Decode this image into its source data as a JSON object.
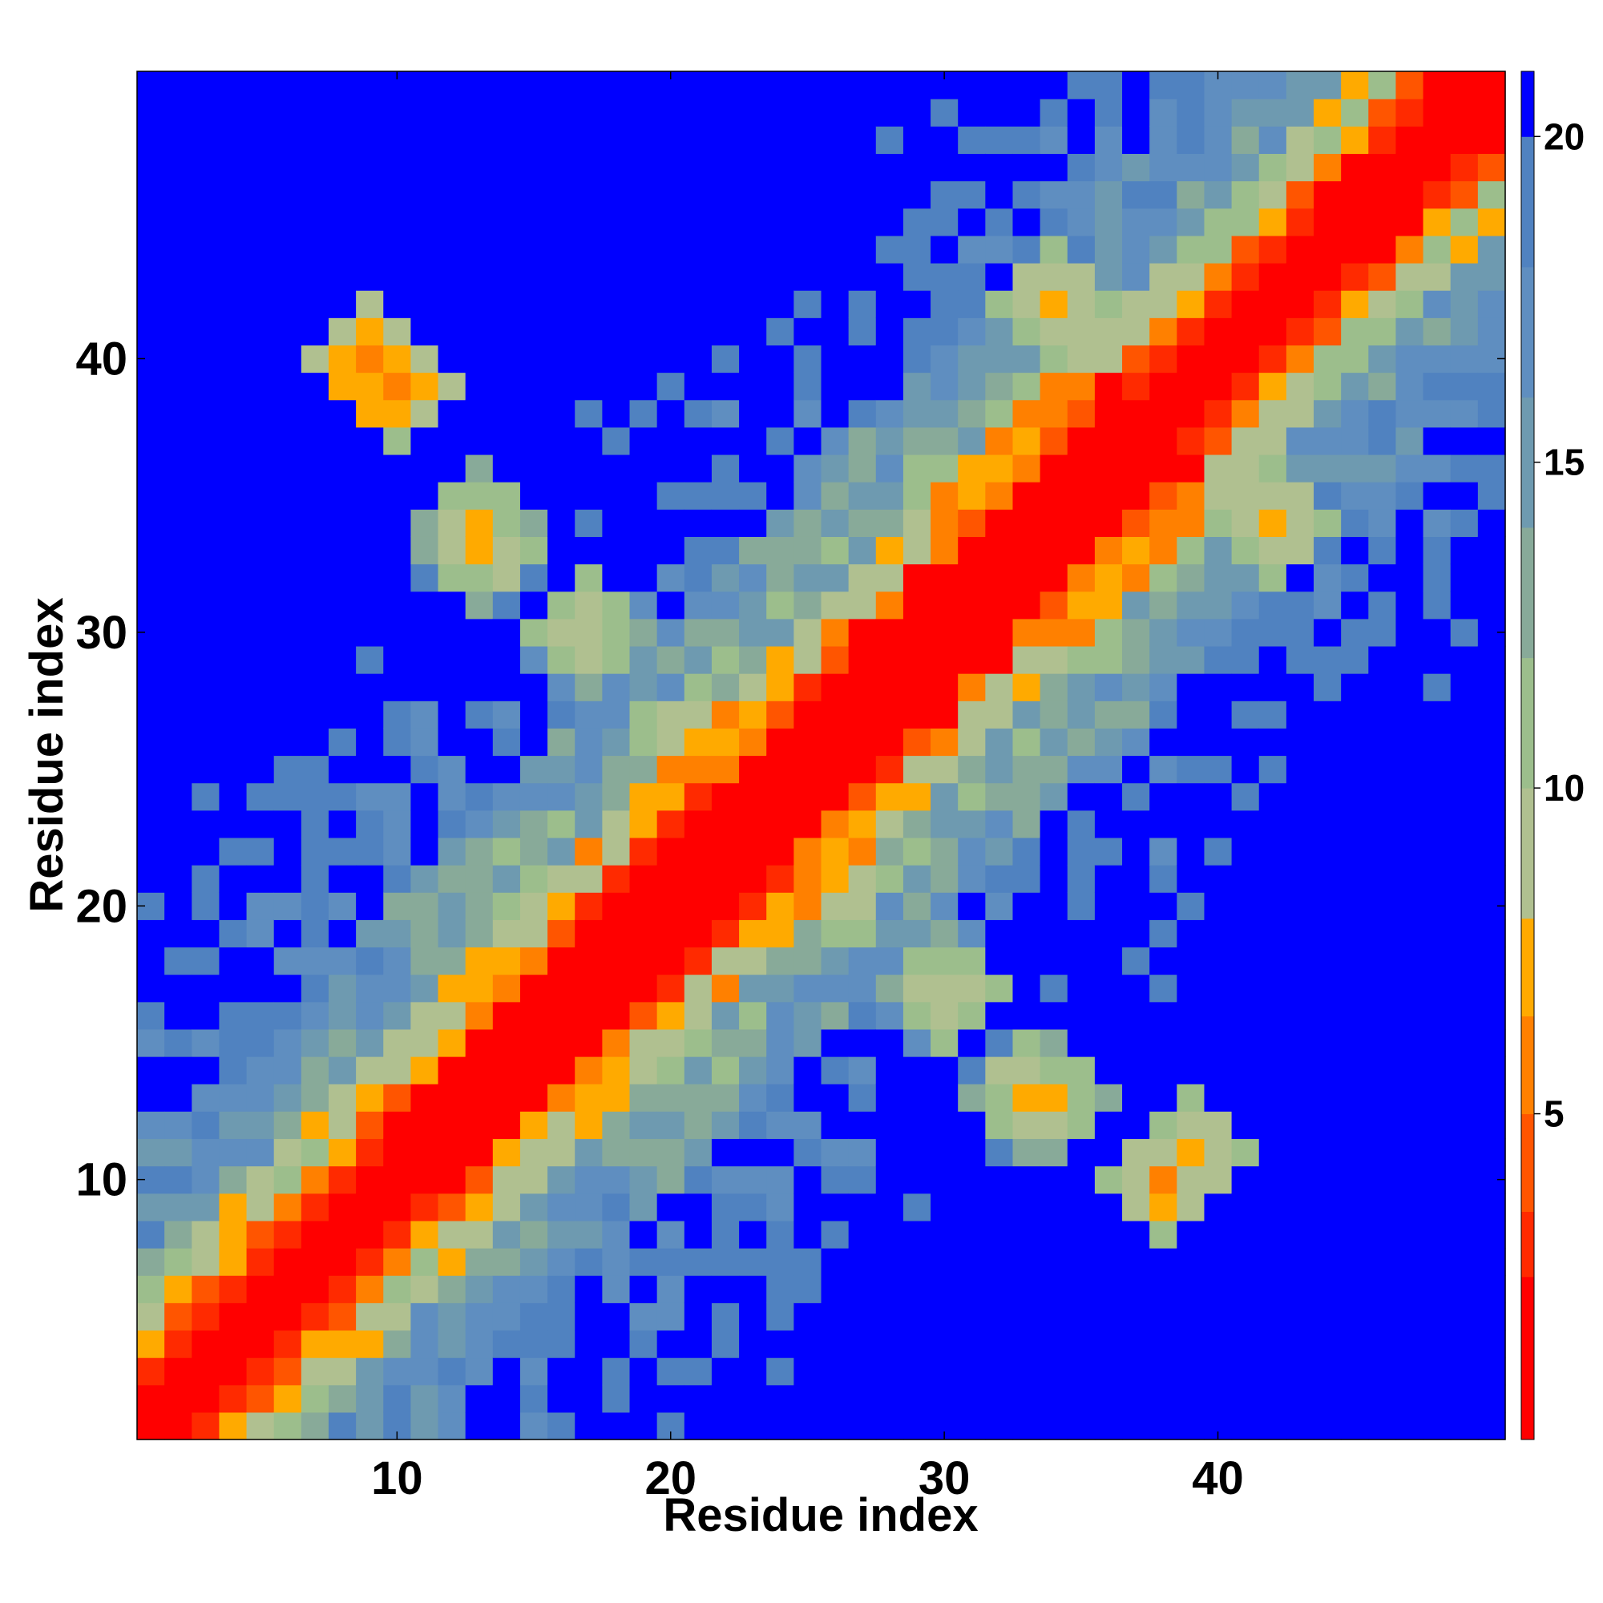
{
  "chart_data": {
    "type": "heatmap",
    "title": "",
    "xlabel": "Residue index",
    "ylabel": "Residue index",
    "grid": false,
    "n": 50,
    "xlim": [
      0.5,
      50.5
    ],
    "ylim": [
      0.5,
      50.5
    ],
    "xticks": [
      10,
      20,
      30,
      40
    ],
    "yticks": [
      10,
      20,
      30,
      40
    ],
    "colorbar": {
      "min": 0,
      "max": 21,
      "ticks": [
        5,
        10,
        15,
        20
      ],
      "bins": [
        {
          "upper": 2.5,
          "color": "#ff0000"
        },
        {
          "upper": 3.5,
          "color": "#ff2a00"
        },
        {
          "upper": 5.0,
          "color": "#ff5500"
        },
        {
          "upper": 6.5,
          "color": "#ff8000"
        },
        {
          "upper": 8.0,
          "color": "#ffaa00"
        },
        {
          "upper": 10.0,
          "color": "#b0c090"
        },
        {
          "upper": 12.0,
          "color": "#9cbe8c"
        },
        {
          "upper": 14.0,
          "color": "#88aa99"
        },
        {
          "upper": 16.0,
          "color": "#6e9ab0"
        },
        {
          "upper": 18.0,
          "color": "#5f8ec0"
        },
        {
          "upper": 20.0,
          "color": "#5082c0"
        },
        {
          "upper": 21.0,
          "color": "#0000ff"
        }
      ]
    },
    "model": {
      "diagonal_band_width": 2.2,
      "background_value": 21,
      "contacts": [
        {
          "i": 9,
          "j": 40,
          "value": 4.5
        },
        {
          "i": 10,
          "j": 39,
          "value": 4.8
        },
        {
          "i": 38,
          "j": 10,
          "value": 5.5
        },
        {
          "i": 39,
          "j": 11,
          "value": 6.0
        },
        {
          "i": 13,
          "j": 33,
          "value": 7.0
        },
        {
          "i": 33,
          "j": 13,
          "value": 7.0
        },
        {
          "i": 17,
          "j": 30,
          "value": 7.5
        },
        {
          "i": 30,
          "j": 17,
          "value": 7.5
        },
        {
          "i": 21,
          "j": 26,
          "value": 6.5
        },
        {
          "i": 26,
          "j": 21,
          "value": 6.5
        },
        {
          "i": 34,
          "j": 13,
          "value": 7.5
        },
        {
          "i": 13,
          "j": 34,
          "value": 7.5
        },
        {
          "i": 42,
          "j": 34,
          "value": 6.0
        },
        {
          "i": 34,
          "j": 42,
          "value": 6.0
        },
        {
          "i": 18,
          "j": 21,
          "value": 5.5
        },
        {
          "i": 21,
          "j": 18,
          "value": 5.5
        }
      ]
    }
  }
}
